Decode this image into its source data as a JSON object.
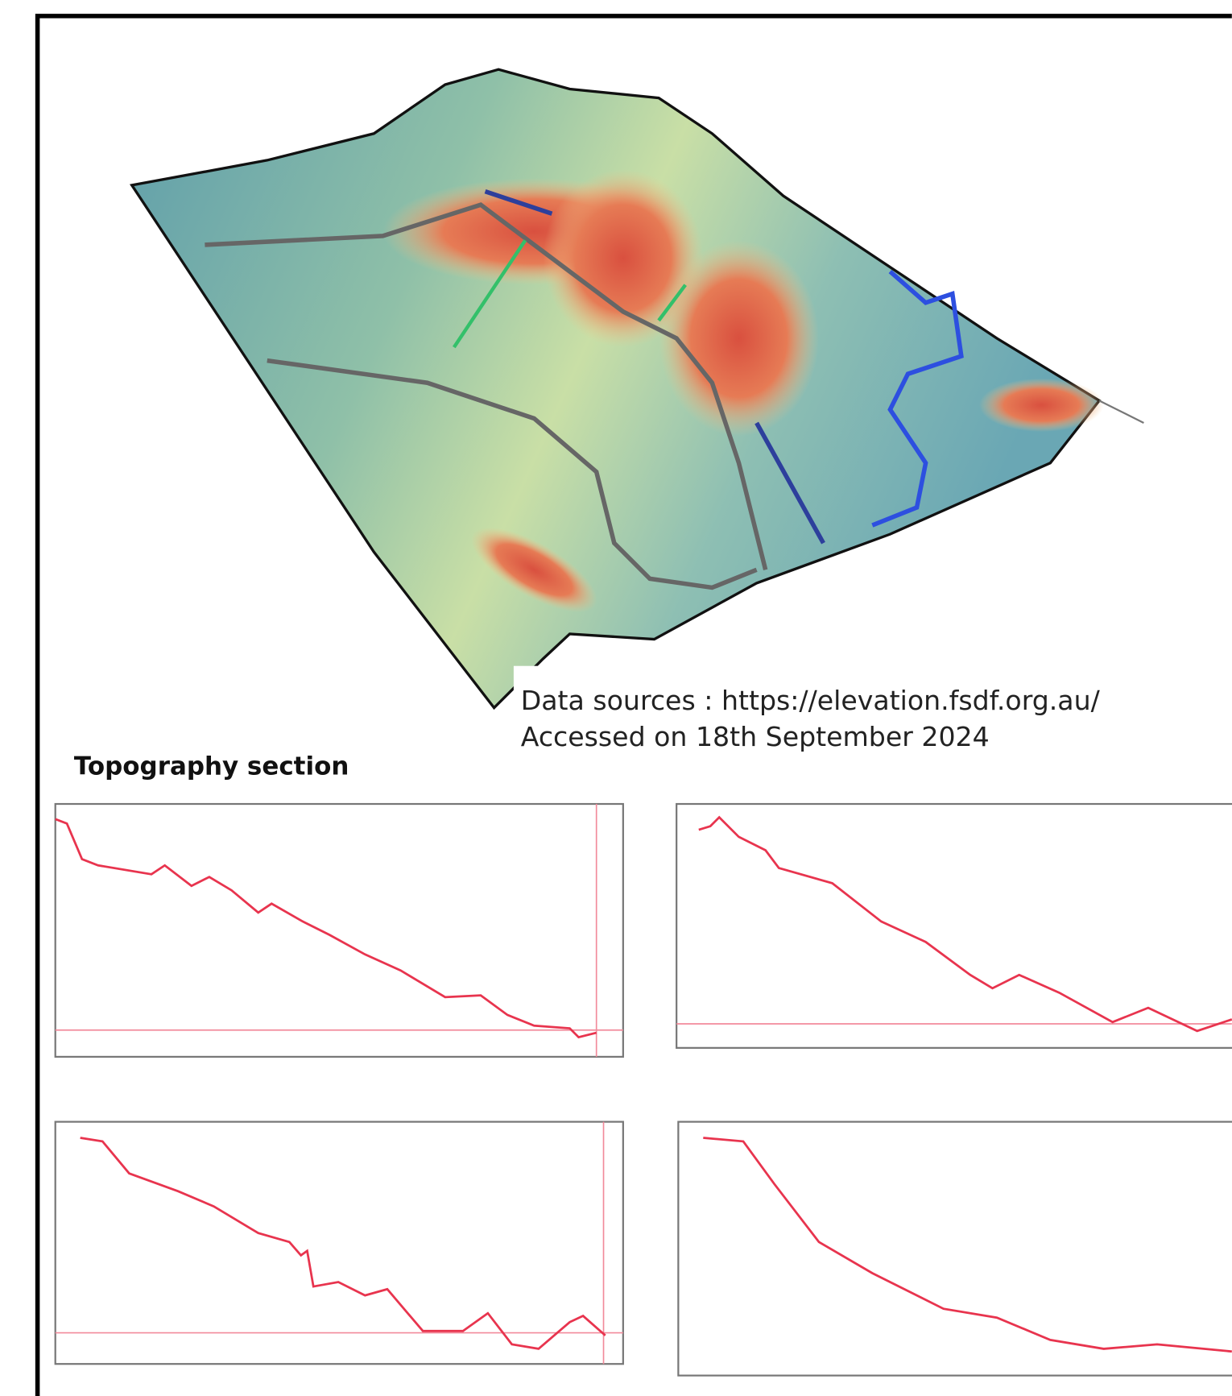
{
  "figure": {
    "source_line": "Data sources : https://elevation.fsdf.org.au/",
    "access_line": "Accessed on 18th September 2024",
    "section_title": "Topography section"
  }
}
